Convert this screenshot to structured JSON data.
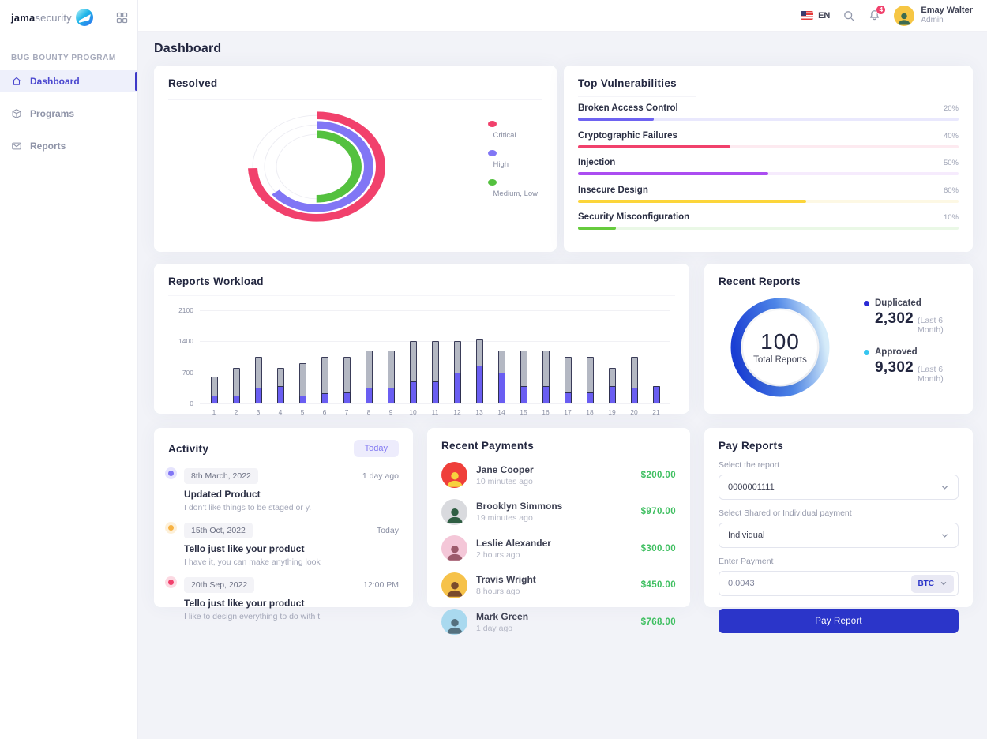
{
  "brand": {
    "name_bold": "jama",
    "name_light": "security"
  },
  "sidebar": {
    "section": "BUG BOUNTY PROGRAM",
    "items": [
      {
        "label": "Dashboard",
        "icon": "home-icon",
        "active": true
      },
      {
        "label": "Programs",
        "icon": "cube-icon",
        "active": false
      },
      {
        "label": "Reports",
        "icon": "mail-icon",
        "active": false
      }
    ]
  },
  "header": {
    "lang": "EN",
    "bell_badge": "4",
    "user": {
      "name": "Emay Walter",
      "role": "Admin",
      "avatar_bg": "#f6c644",
      "avatar_fg": "#3c6b50"
    }
  },
  "page": {
    "title": "Dashboard"
  },
  "cards": {
    "resolved": {
      "title": "Resolved"
    },
    "top_vulnerabilities": {
      "title": "Top Vulnerabilities"
    },
    "reports_workload": {
      "title": "Reports Workload"
    },
    "recent_reports": {
      "title": "Recent Reports",
      "total": "100",
      "total_label": "Total Reports",
      "stats": [
        {
          "label": "Duplicated",
          "value": "2,302",
          "suffix": "(Last 6 Month)",
          "dot": "#2b2bd5"
        },
        {
          "label": "Approved",
          "value": "9,302",
          "suffix": "(Last 6 Month)",
          "dot": "#35c5f0"
        }
      ]
    },
    "activity": {
      "title": "Activity",
      "filter": "Today",
      "items": [
        {
          "date": "8th March, 2022",
          "when": "1 day ago",
          "title": "Updated Product",
          "desc": "I don't like things to be staged or y.",
          "dot": "#8176f5"
        },
        {
          "date": "15th Oct, 2022",
          "when": "Today",
          "title": "Tello just like your product",
          "desc": "I have it, you can make anything look",
          "dot": "#f7b243"
        },
        {
          "date": "20th Sep, 2022",
          "when": "12:00 PM",
          "title": "Tello just like your product",
          "desc": "I like to design everything to do with t",
          "dot": "#f1416c"
        }
      ]
    },
    "recent_payments": {
      "title": "Recent Payments",
      "items": [
        {
          "name": "Jane Cooper",
          "time": "10 minutes ago",
          "amount": "$200.00",
          "avatar_bg": "#ef3f3a",
          "avatar_fg": "#f7d23e"
        },
        {
          "name": "Brooklyn Simmons",
          "time": "19 minutes ago",
          "amount": "$970.00",
          "avatar_bg": "#d9dade",
          "avatar_fg": "#2f5e43"
        },
        {
          "name": "Leslie Alexander",
          "time": "2 hours ago",
          "amount": "$300.00",
          "avatar_bg": "#f4c7d8",
          "avatar_fg": "#9c5a6b"
        },
        {
          "name": "Travis Wright",
          "time": "8 hours ago",
          "amount": "$450.00",
          "avatar_bg": "#f6c24a",
          "avatar_fg": "#7a4a2c"
        },
        {
          "name": "Mark Green",
          "time": "1 day ago",
          "amount": "$768.00",
          "avatar_bg": "#a9d9ef",
          "avatar_fg": "#55707e"
        }
      ]
    },
    "pay_reports": {
      "title": "Pay Reports",
      "report_label": "Select the report",
      "report_value": "0000001111",
      "type_label": "Select Shared or Individual payment",
      "type_value": "Individual",
      "amount_label": "Enter Payment",
      "amount_value": "0.0043",
      "currency": "BTC",
      "button": "Pay Report"
    }
  },
  "chart_data": [
    {
      "type": "radial-bar",
      "title": "Resolved",
      "legend_position": "right",
      "series": [
        {
          "name": "Critical",
          "color": "#f1416c",
          "sweep_deg": 268
        },
        {
          "name": "High",
          "color": "#8176f5",
          "sweep_deg": 232
        },
        {
          "name": "Medium, Low",
          "color": "#54c13f",
          "sweep_deg": 180
        }
      ]
    },
    {
      "type": "bar",
      "subtype": "horizontal-progress",
      "title": "Top Vulnerabilities",
      "items": [
        {
          "label": "Broken Access Control",
          "value": 20,
          "pct_label": "20%",
          "color": "#6e63f1",
          "track": "#e9e8fd"
        },
        {
          "label": "Cryptographic Failures",
          "value": 40,
          "pct_label": "40%",
          "color": "#f1416c",
          "track": "#fdeaf0"
        },
        {
          "label": "Injection",
          "value": 50,
          "pct_label": "50%",
          "color": "#ab4df1",
          "track": "#f6ebfd"
        },
        {
          "label": "Insecure Design",
          "value": 60,
          "pct_label": "60%",
          "color": "#fcd53a",
          "track": "#fdf8e4"
        },
        {
          "label": "Security Misconfiguration",
          "value": 10,
          "pct_label": "10%",
          "color": "#66cb3d",
          "track": "#eaf8e6"
        }
      ]
    },
    {
      "type": "bar",
      "subtype": "stacked-vertical",
      "title": "Reports Workload",
      "categories": [
        1,
        2,
        3,
        4,
        5,
        6,
        7,
        8,
        9,
        10,
        11,
        12,
        13,
        14,
        15,
        16,
        17,
        18,
        19,
        20,
        21
      ],
      "series": [
        {
          "name": "purple",
          "color": "#6a5ef2",
          "values": [
            180,
            180,
            350,
            400,
            180,
            240,
            250,
            350,
            350,
            500,
            500,
            700,
            850,
            700,
            400,
            400,
            250,
            250,
            400,
            350,
            400
          ]
        },
        {
          "name": "gray",
          "color": "#b4b8c3",
          "values": [
            420,
            620,
            700,
            400,
            720,
            810,
            800,
            850,
            850,
            900,
            900,
            700,
            600,
            500,
            800,
            800,
            800,
            800,
            400,
            700,
            0
          ]
        }
      ],
      "ylim": [
        0,
        2100
      ],
      "yticks": [
        0,
        700,
        1400,
        2100
      ],
      "grid": true
    },
    {
      "type": "pie",
      "subtype": "gradient-ring-total",
      "title": "Recent Reports",
      "total": 100,
      "total_label": "Total Reports",
      "ring_gradient": [
        "#1b3fd4",
        "#d6ecfa"
      ],
      "metrics": [
        {
          "label": "Duplicated",
          "value": 2302,
          "period": "Last 6 Month",
          "color": "#2b2bd5"
        },
        {
          "label": "Approved",
          "value": 9302,
          "period": "Last 6 Month",
          "color": "#35c5f0"
        }
      ]
    }
  ]
}
